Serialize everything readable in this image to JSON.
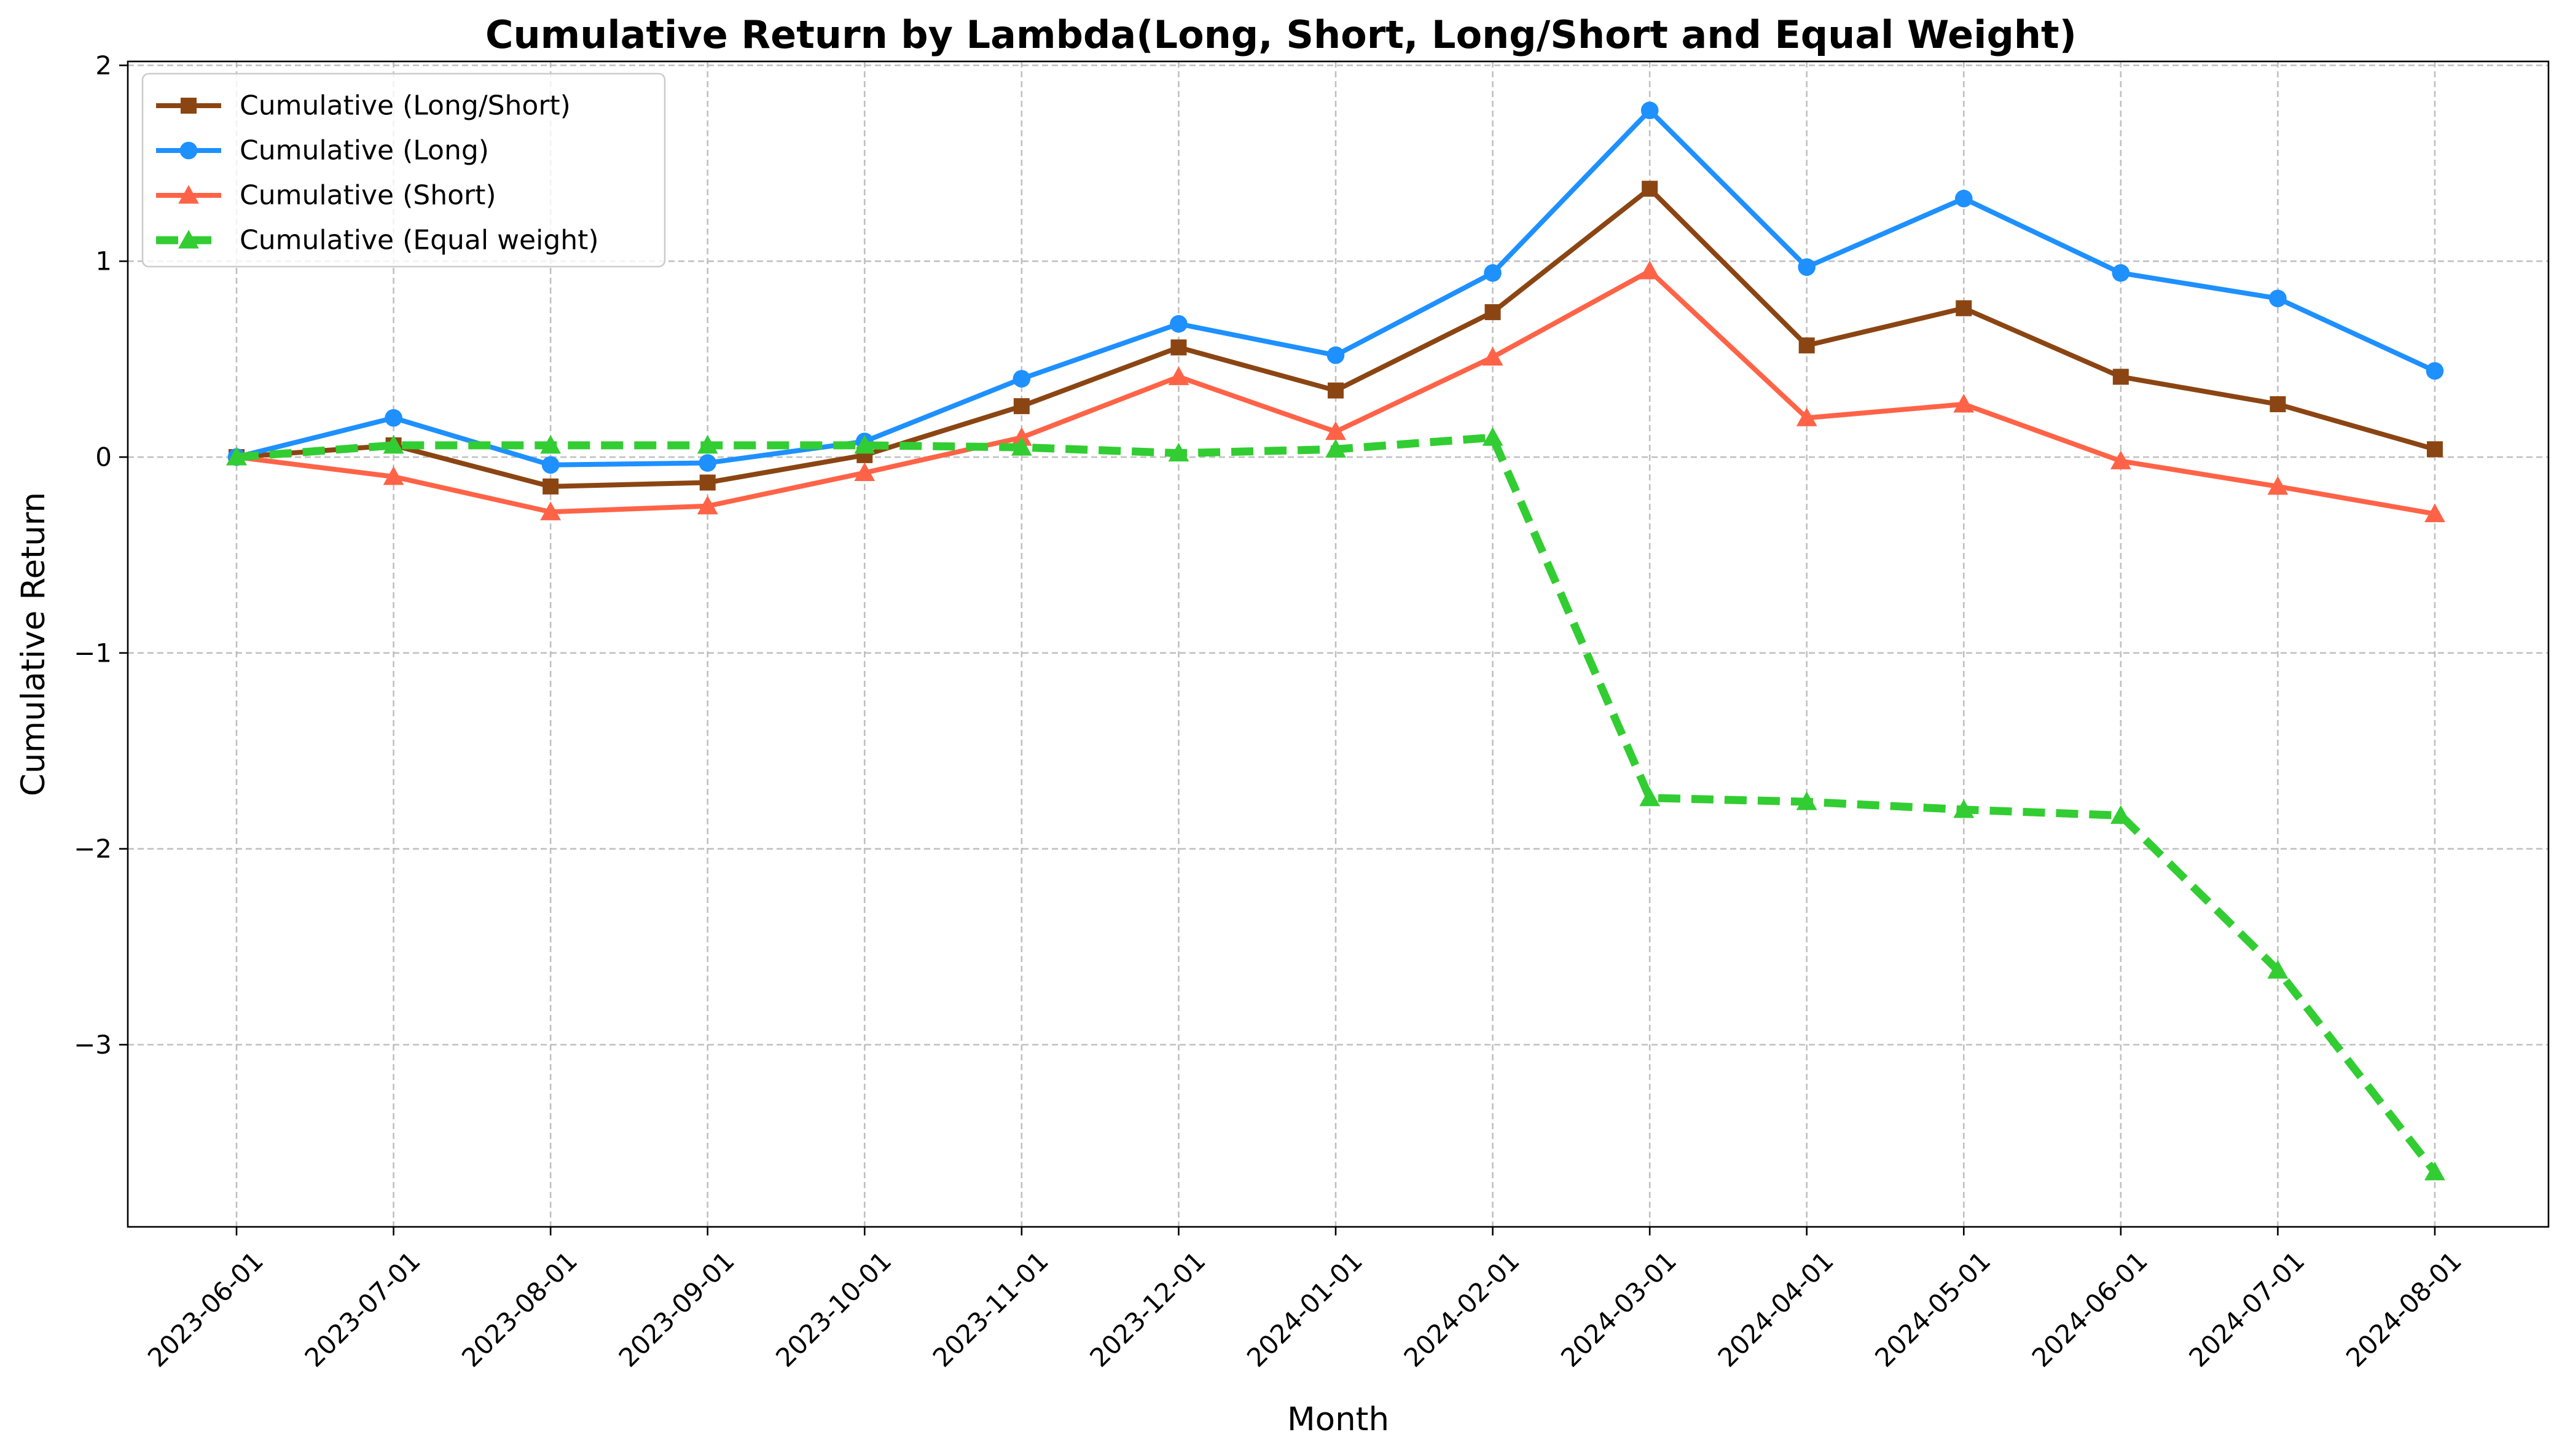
{
  "chart_data": {
    "type": "line",
    "title": "Cumulative Return by Lambda(Long, Short, Long/Short and Equal Weight)",
    "xlabel": "Month",
    "ylabel": "Cumulative Return",
    "x": [
      "2023-06-01",
      "2023-07-01",
      "2023-08-01",
      "2023-09-01",
      "2023-10-01",
      "2023-11-01",
      "2023-12-01",
      "2024-01-01",
      "2024-02-01",
      "2024-03-01",
      "2024-04-01",
      "2024-05-01",
      "2024-06-01",
      "2024-07-01",
      "2024-08-01"
    ],
    "ylim": [
      -3.93,
      2.02
    ],
    "yticks": [
      -3,
      -2,
      -1,
      0,
      1,
      2
    ],
    "ytick_labels": [
      "−3",
      "−2",
      "−1",
      "0",
      "1",
      "2"
    ],
    "grid": true,
    "legend_position": "upper-left",
    "series": [
      {
        "name": "Cumulative (Long/Short)",
        "color": "#8B4513",
        "marker": "square",
        "linestyle": "solid",
        "values": [
          0.0,
          0.06,
          -0.15,
          -0.13,
          0.01,
          0.26,
          0.56,
          0.34,
          0.74,
          1.37,
          0.57,
          0.76,
          0.41,
          0.27,
          0.04
        ]
      },
      {
        "name": "Cumulative (Long)",
        "color": "#1E90FF",
        "marker": "circle",
        "linestyle": "solid",
        "values": [
          0.0,
          0.2,
          -0.04,
          -0.03,
          0.08,
          0.4,
          0.68,
          0.52,
          0.94,
          1.77,
          0.97,
          1.32,
          0.94,
          0.81,
          0.44
        ]
      },
      {
        "name": "Cumulative (Short)",
        "color": "#FF6347",
        "marker": "triangle",
        "linestyle": "solid",
        "values": [
          0.0,
          -0.1,
          -0.28,
          -0.25,
          -0.08,
          0.1,
          0.41,
          0.13,
          0.51,
          0.95,
          0.2,
          0.27,
          -0.02,
          -0.15,
          -0.29
        ]
      },
      {
        "name": "Cumulative (Equal weight)",
        "color": "#32CD32",
        "marker": "triangle",
        "linestyle": "dashed",
        "values": [
          0.0,
          0.06,
          0.06,
          0.06,
          0.06,
          0.05,
          0.02,
          0.04,
          0.1,
          -1.74,
          -1.76,
          -1.8,
          -1.83,
          -2.62,
          -3.65
        ]
      }
    ]
  }
}
